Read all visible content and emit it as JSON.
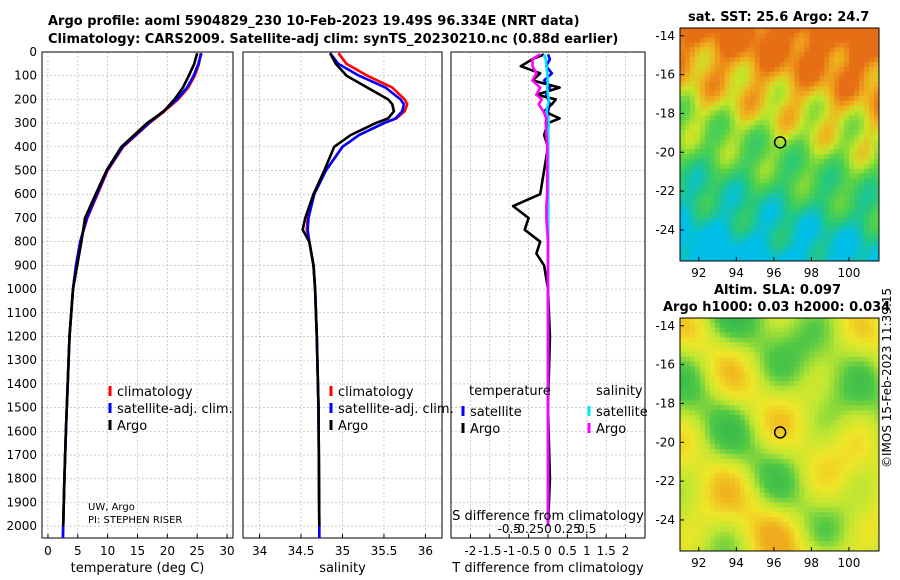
{
  "header": {
    "title_line1": "Argo profile: aoml 5904829_230 10-Feb-2023 19.49S 96.334E (NRT data)",
    "title_line2": "Climatology: CARS2009. Satellite-adj clim: synTS_20230210.nc (0.88d earlier)"
  },
  "colors": {
    "climatology": "#ff0000",
    "satellite": "#0000ff",
    "argo": "#000000",
    "sat_salinity": "#00e5ff",
    "argo_salinity": "#ff00ff"
  },
  "chart_data": [
    {
      "id": "temperature",
      "type": "line",
      "xlabel": "temperature (deg C)",
      "xlim": [
        -1,
        31
      ],
      "xticks": [
        0,
        5,
        10,
        15,
        20,
        25,
        30
      ],
      "ylim": [
        2050,
        0
      ],
      "yticks": [
        0,
        100,
        200,
        300,
        400,
        500,
        600,
        700,
        800,
        900,
        1000,
        1100,
        1200,
        1300,
        1400,
        1500,
        1600,
        1700,
        1800,
        1900,
        2000
      ],
      "depth": [
        5,
        50,
        100,
        150,
        200,
        250,
        300,
        400,
        500,
        600,
        700,
        800,
        900,
        1000,
        1200,
        1400,
        1600,
        1800,
        2000,
        2050
      ],
      "series": [
        {
          "name": "climatology",
          "values": [
            25.6,
            25.3,
            24.6,
            23.5,
            21.8,
            19.5,
            17.0,
            12.6,
            10.0,
            8.3,
            6.6,
            5.4,
            4.7,
            4.2,
            3.6,
            3.3,
            3.0,
            2.75,
            2.55,
            2.5
          ]
        },
        {
          "name": "satellite-adj. clim.",
          "values": [
            25.7,
            25.2,
            24.4,
            23.3,
            21.6,
            19.3,
            16.9,
            12.5,
            9.9,
            8.2,
            6.5,
            5.4,
            4.7,
            4.2,
            3.6,
            3.3,
            3.0,
            2.75,
            2.55,
            2.5
          ]
        },
        {
          "name": "Argo",
          "values": [
            25.0,
            24.5,
            23.6,
            22.6,
            21.2,
            19.4,
            16.6,
            12.3,
            9.8,
            8.0,
            6.2,
            5.6,
            4.9,
            4.2,
            3.6,
            3.3,
            3.0,
            2.75,
            2.55,
            null
          ]
        }
      ],
      "legend": [
        "climatology",
        "satellite-adj. clim.",
        "Argo"
      ],
      "annotation": [
        "UW, Argo",
        "PI: STEPHEN RISER"
      ]
    },
    {
      "id": "salinity",
      "type": "line",
      "xlabel": "salinity",
      "xlim": [
        33.8,
        36.2
      ],
      "xticks": [
        34,
        34.5,
        35,
        35.5,
        36
      ],
      "ylim": [
        2050,
        0
      ],
      "depth": [
        5,
        50,
        100,
        150,
        200,
        220,
        250,
        280,
        300,
        350,
        400,
        500,
        600,
        700,
        750,
        800,
        900,
        1000,
        1200,
        1500,
        2000,
        2050
      ],
      "series": [
        {
          "name": "climatology",
          "values": [
            34.95,
            35.05,
            35.3,
            35.6,
            35.75,
            35.78,
            35.75,
            35.65,
            35.5,
            35.2,
            35.0,
            34.8,
            34.65,
            34.58,
            34.57,
            34.6,
            34.65,
            34.67,
            34.69,
            34.71,
            34.72,
            34.72
          ]
        },
        {
          "name": "satellite-adj. clim.",
          "values": [
            34.85,
            34.95,
            35.2,
            35.52,
            35.7,
            35.74,
            35.72,
            35.64,
            35.5,
            35.2,
            35.0,
            34.8,
            34.66,
            34.59,
            34.58,
            34.6,
            34.65,
            34.67,
            34.69,
            34.71,
            34.72,
            34.72
          ]
        },
        {
          "name": "Argo",
          "values": [
            34.85,
            34.92,
            35.05,
            35.3,
            35.55,
            35.6,
            35.62,
            35.55,
            35.4,
            35.1,
            34.9,
            34.78,
            34.65,
            34.55,
            34.52,
            34.6,
            34.65,
            34.67,
            34.69,
            34.71,
            34.72,
            null
          ]
        }
      ],
      "legend": [
        "climatology",
        "satellite-adj. clim.",
        "Argo"
      ]
    },
    {
      "id": "difference",
      "type": "line",
      "xlabel": "T difference from climatology",
      "xlabel_top": "S difference from climatology",
      "xlim": [
        -2.5,
        2.5
      ],
      "xticks": [
        -2,
        -1.5,
        -1,
        -0.5,
        0,
        0.5,
        1,
        1.5,
        2
      ],
      "xticklabels": [
        "-2",
        "-1.5",
        "-1",
        "-0.5",
        "0",
        "0.5",
        "1",
        "1.5",
        "2"
      ],
      "xticks_s": [
        -0.5,
        -0.25,
        0,
        0.25,
        0.5
      ],
      "xticklabels_s": [
        "-0.5",
        "-0.25",
        "0",
        "0.25",
        "0.5"
      ],
      "ylim": [
        2050,
        0
      ],
      "depth": [
        10,
        30,
        60,
        90,
        120,
        150,
        180,
        200,
        220,
        250,
        280,
        300,
        350,
        400,
        500,
        600,
        650,
        700,
        750,
        800,
        850,
        900,
        1000,
        1200,
        1500,
        1800,
        2000
      ],
      "series": [
        {
          "name": "temperature satellite",
          "values": [
            0.0,
            0.05,
            -0.05,
            0.1,
            -0.1,
            0.05,
            -0.05,
            0.0,
            0.05,
            0.0,
            0.0,
            0.0,
            0.0,
            0.0,
            0.0,
            0.0,
            0.0,
            0.0,
            0.0,
            0.0,
            0.0,
            0.0,
            0.0,
            0.0,
            0.0,
            0.0,
            0.0
          ]
        },
        {
          "name": "temperature Argo",
          "values": [
            -0.1,
            -0.4,
            -0.7,
            -0.2,
            -0.4,
            0.3,
            -0.3,
            0.2,
            0.1,
            -0.1,
            0.3,
            0.0,
            -0.1,
            0.0,
            -0.1,
            -0.2,
            -0.9,
            -0.5,
            -0.6,
            -0.2,
            -0.3,
            -0.1,
            0.0,
            0.05,
            0.0,
            0.05,
            0.0
          ]
        },
        {
          "name": "salinity satellite",
          "values": [
            -0.05,
            -0.03,
            -0.02,
            -0.01,
            0.0,
            -0.01,
            0.0,
            0.01,
            0.0,
            -0.02,
            0.0,
            0.01,
            0.0,
            0.0,
            0.0,
            0.0,
            0.0,
            0.0,
            0.0,
            0.0,
            0.0,
            0.0,
            0.0,
            0.0,
            0.0,
            0.0,
            0.0
          ]
        },
        {
          "name": "salinity Argo",
          "values": [
            -0.1,
            -0.2,
            -0.2,
            -0.15,
            -0.2,
            -0.1,
            -0.15,
            -0.08,
            -0.12,
            -0.06,
            -0.02,
            -0.03,
            -0.02,
            -0.01,
            -0.01,
            -0.01,
            -0.02,
            -0.02,
            -0.01,
            0.0,
            0.0,
            0.0,
            0.0,
            0.0,
            0.0,
            0.0,
            0.0
          ]
        }
      ],
      "legend_t": {
        "heading": "temperature",
        "items": [
          "satellite",
          "Argo"
        ]
      },
      "legend_s": {
        "heading": "salinity",
        "items": [
          "satellite",
          "Argo"
        ]
      }
    },
    {
      "id": "sst_map",
      "type": "heatmap",
      "title": "sat. SST: 25.6 Argo: 24.7",
      "xticks": [
        92,
        94,
        96,
        98,
        100
      ],
      "yticks": [
        -14,
        -16,
        -18,
        -20,
        -22,
        -24
      ],
      "xlim": [
        91,
        101.6
      ],
      "ylim": [
        -25.6,
        -13.6
      ],
      "argo_position": {
        "lon": 96.334,
        "lat": -19.49
      }
    },
    {
      "id": "sla_map",
      "type": "heatmap",
      "title_line1": "Altim. SLA: 0.097",
      "title_line2": "Argo h1000: 0.03 h2000: 0.034",
      "xticks": [
        92,
        94,
        96,
        98,
        100
      ],
      "yticks": [
        -14,
        -16,
        -18,
        -20,
        -22,
        -24
      ],
      "xlim": [
        91,
        101.6
      ],
      "ylim": [
        -25.6,
        -13.6
      ],
      "argo_position": {
        "lon": 96.334,
        "lat": -19.49
      }
    }
  ],
  "footer": {
    "stamp": "©IMOS 15-Feb-2023 11:39:15"
  }
}
